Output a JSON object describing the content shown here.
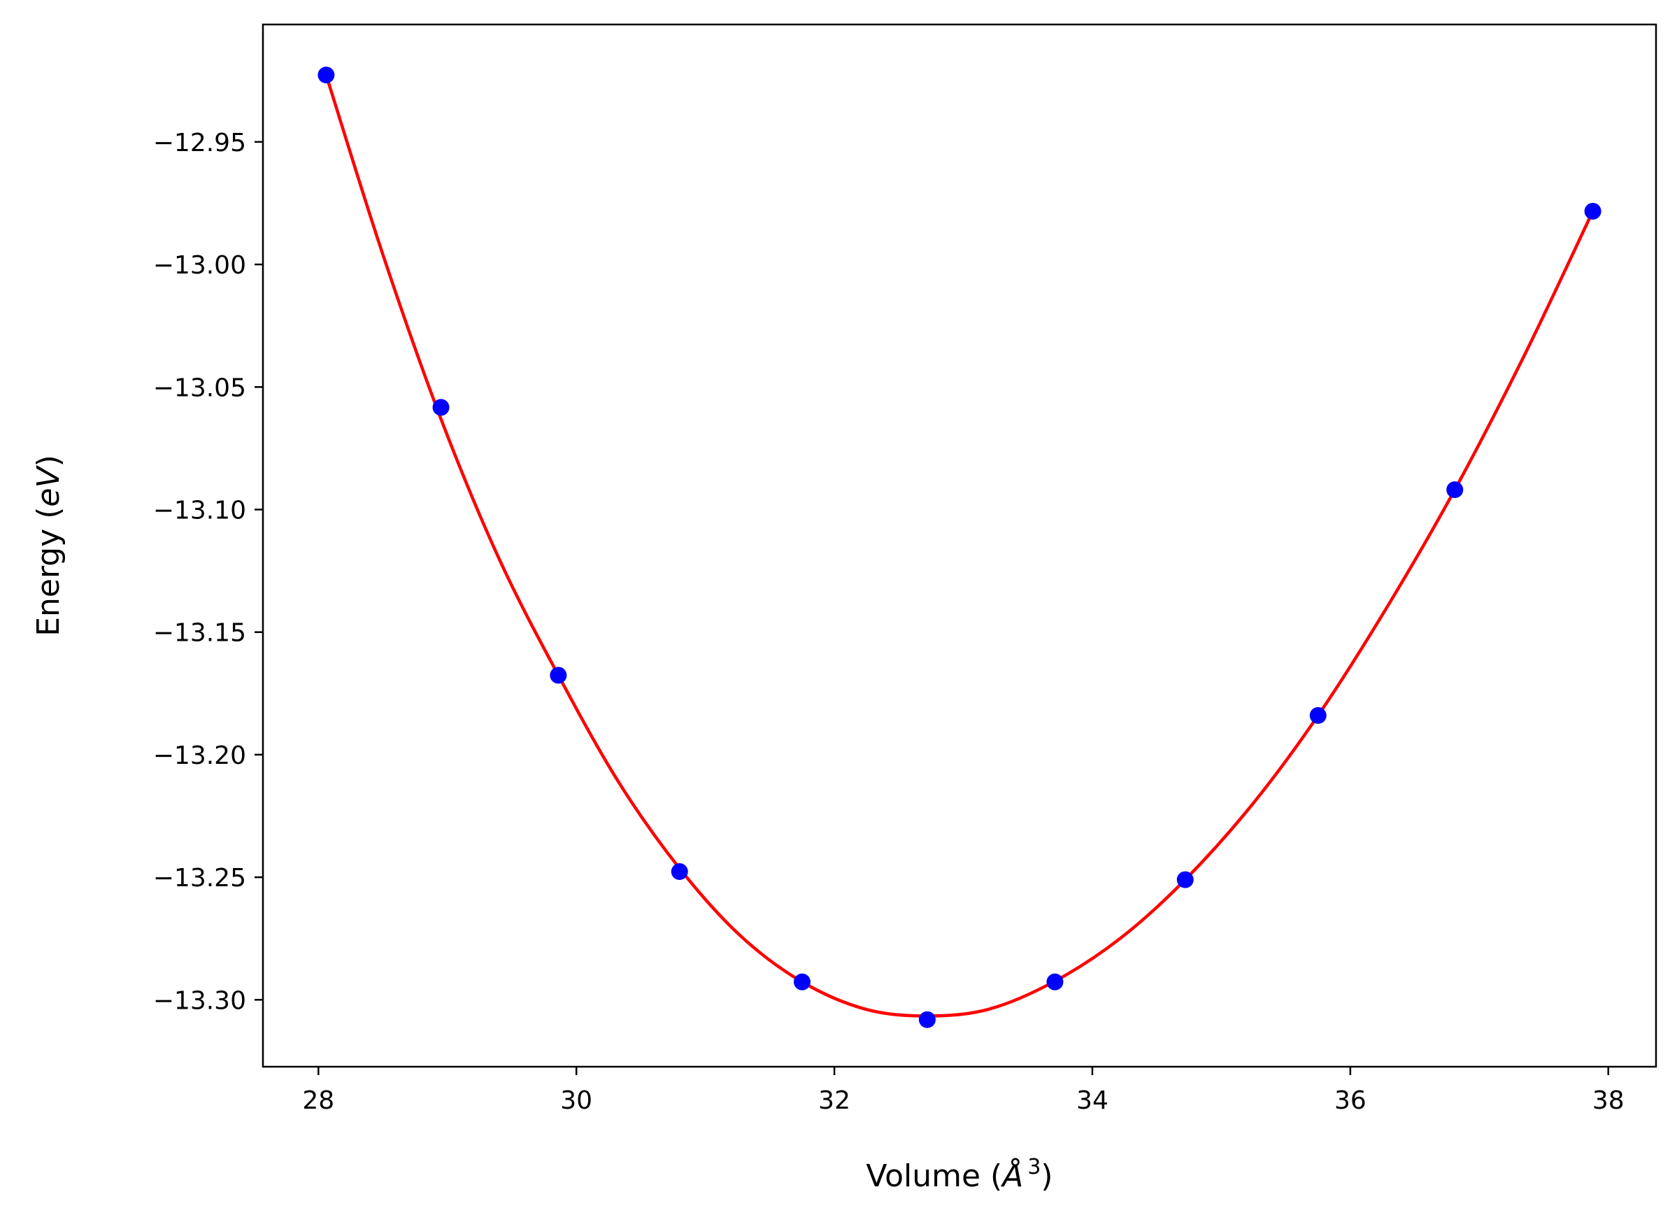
{
  "chart_data": {
    "type": "scatter",
    "xlabel": {
      "pre": "Volume (",
      "var": "Å",
      "sup": "3",
      "post": ")"
    },
    "ylabel": {
      "pre": "Energy (",
      "var": "eV",
      "post": ")"
    },
    "xlim": [
      27.57,
      38.37
    ],
    "ylim": [
      -13.3273,
      -12.9021
    ],
    "xticks": [
      {
        "value": 28,
        "label": "28"
      },
      {
        "value": 30,
        "label": "30"
      },
      {
        "value": 32,
        "label": "32"
      },
      {
        "value": 34,
        "label": "34"
      },
      {
        "value": 36,
        "label": "36"
      },
      {
        "value": 38,
        "label": "38"
      }
    ],
    "yticks": [
      {
        "value": -12.95,
        "label": "−12.95"
      },
      {
        "value": -13.0,
        "label": "−13.00"
      },
      {
        "value": -13.05,
        "label": "−13.05"
      },
      {
        "value": -13.1,
        "label": "−13.10"
      },
      {
        "value": -13.15,
        "label": "−13.15"
      },
      {
        "value": -13.2,
        "label": "−13.20"
      },
      {
        "value": -13.25,
        "label": "−13.25"
      },
      {
        "value": -13.3,
        "label": "−13.30"
      }
    ],
    "grid": false,
    "series": [
      {
        "kind": "points",
        "color": "#0000ff",
        "x": [
          28.06,
          28.95,
          29.86,
          30.8,
          31.75,
          32.72,
          33.71,
          34.72,
          35.75,
          36.81,
          37.88
        ],
        "y": [
          -12.9227,
          -13.0583,
          -13.1676,
          -13.2477,
          -13.2927,
          -13.3081,
          -13.2927,
          -13.251,
          -13.184,
          -13.0919,
          -12.9783
        ]
      },
      {
        "kind": "fit-curve",
        "color": "#ff0000",
        "x": [
          28.06,
          28.5,
          28.95,
          29.4,
          29.86,
          30.33,
          30.8,
          31.27,
          31.75,
          32.24,
          32.72,
          33.2,
          33.71,
          34.22,
          34.72,
          35.24,
          35.75,
          36.28,
          36.81,
          37.35,
          37.88
        ],
        "y": [
          -12.9227,
          -12.996,
          -13.063,
          -13.12,
          -13.1676,
          -13.2114,
          -13.2464,
          -13.2738,
          -13.2927,
          -13.3038,
          -13.3066,
          -13.3038,
          -13.2924,
          -13.2748,
          -13.251,
          -13.2203,
          -13.184,
          -13.1402,
          -13.0919,
          -13.037,
          -12.9783
        ]
      }
    ]
  }
}
